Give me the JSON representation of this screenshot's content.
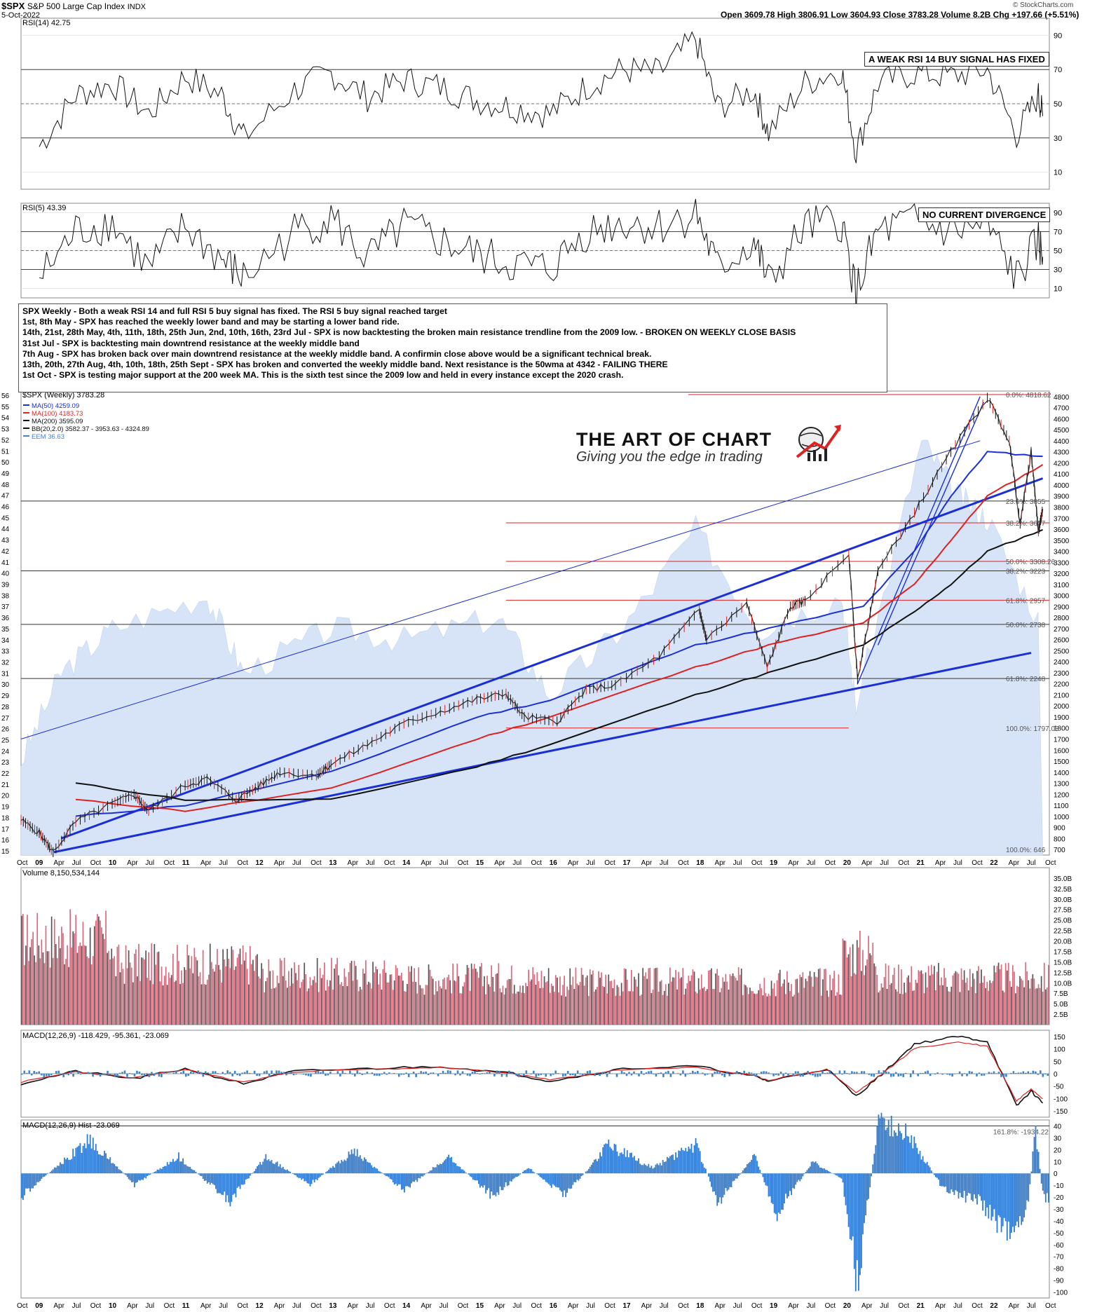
{
  "header": {
    "symbol": "$SPX",
    "name": "S&P 500 Large Cap Index",
    "exchange": "INDX",
    "date": "5-Oct-2022",
    "ohlc": "Open 3609.78  High 3806.91  Low 3604.93  Close 3783.28  Volume 8.2B  Chg +197.66 (+5.51%)",
    "copyright": "© StockCharts.com"
  },
  "callouts": {
    "rsi14": "A WEAK RSI 14 BUY SIGNAL HAS FIXED",
    "rsi5": "NO CURRENT DIVERGENCE"
  },
  "notes": [
    "SPX Weekly - Both a weak RSI 14 and full RSI 5 buy signal has fixed. The RSI 5 buy signal reached target",
    "1st, 8th May - SPX has reached the weekly lower band and may be starting a lower band ride.",
    "14th, 21st, 28th May, 4th, 11th, 18th, 25th Jun, 2nd, 10th, 16th, 23rd Jul - SPX is now backtesting the broken main resistance trendline from the 2009 low. - BROKEN ON WEEKLY CLOSE BASIS",
    "31st Jul - SPX is backtesting main downtrend resistance at the weekly middle band",
    "7th Aug - SPX has broken back over main downtrend resistance at the weekly middle band. A confirmin close above would be a significant technical break.",
    "13th, 20th, 27th Aug, 4th, 10th, 18th, 25th Sept - SPX has broken and converted the weekly middle band. Next resistance is the 50wma at 4342 - FAILING THERE",
    "",
    "1st Oct - SPX is testing major support at the 200 week MA. This is the sixth test since the 2009 low and held in every instance except the 2020 crash."
  ],
  "logo": {
    "title": "THE ART OF CHART",
    "subtitle": "Giving you the edge in trading"
  },
  "chart_data": [
    {
      "type": "line",
      "title": "RSI(14) 42.75",
      "ylim": [
        0,
        100
      ],
      "yticks": [
        "90",
        "70",
        "50",
        "30",
        "10"
      ],
      "series": [
        {
          "name": "RSI(14)",
          "x": [
            2009.0,
            2009.5,
            2010.0,
            2010.5,
            2011.0,
            2011.5,
            2011.8,
            2012.5,
            2013.0,
            2013.5,
            2014.0,
            2014.5,
            2015.0,
            2015.5,
            2016.0,
            2016.5,
            2017.0,
            2017.5,
            2018.0,
            2018.3,
            2018.8,
            2019.0,
            2019.5,
            2020.0,
            2020.2,
            2020.5,
            2021.0,
            2021.5,
            2022.0,
            2022.4,
            2022.7,
            2022.76
          ],
          "values": [
            25,
            55,
            62,
            44,
            66,
            55,
            30,
            58,
            68,
            54,
            64,
            60,
            52,
            48,
            44,
            60,
            70,
            68,
            88,
            48,
            58,
            33,
            62,
            70,
            22,
            62,
            68,
            66,
            70,
            32,
            55,
            42.75
          ]
        }
      ]
    },
    {
      "type": "line",
      "title": "RSI(5) 43.39",
      "ylim": [
        0,
        100
      ],
      "yticks": [
        "90",
        "70",
        "50",
        "30",
        "10"
      ],
      "series": [
        {
          "name": "RSI(5)",
          "x": [
            2009.0,
            2009.5,
            2010.0,
            2010.5,
            2011.0,
            2011.5,
            2011.8,
            2012.5,
            2013.0,
            2013.5,
            2014.0,
            2014.5,
            2015.0,
            2015.5,
            2016.0,
            2016.5,
            2017.0,
            2017.5,
            2018.0,
            2018.3,
            2018.8,
            2019.0,
            2019.5,
            2020.0,
            2020.2,
            2020.5,
            2021.0,
            2021.5,
            2022.0,
            2022.4,
            2022.7,
            2022.76
          ],
          "values": [
            20,
            70,
            80,
            30,
            75,
            40,
            20,
            70,
            85,
            40,
            75,
            60,
            45,
            35,
            30,
            70,
            80,
            75,
            90,
            30,
            60,
            15,
            75,
            80,
            5,
            70,
            80,
            70,
            75,
            20,
            60,
            43.39
          ]
        }
      ]
    },
    {
      "type": "line",
      "title": "$SPX (Weekly) 3783.28",
      "legend": [
        "MA(50) 4259.09",
        "MA(100) 4183.73",
        "MA(200) 3595.09",
        "BB(20,2.0) 3582.37 - 3953.63 - 4324.89",
        "EEM 36.63"
      ],
      "ylim": [
        650,
        4850
      ],
      "yticks": [
        "4800",
        "4700",
        "4600",
        "4500",
        "4400",
        "4300",
        "4200",
        "4100",
        "4000",
        "3900",
        "3800",
        "3700",
        "3600",
        "3500",
        "3400",
        "3300",
        "3200",
        "3100",
        "3000",
        "2900",
        "2800",
        "2700",
        "2600",
        "2500",
        "2400",
        "2300",
        "2200",
        "2100",
        "2000",
        "1900",
        "1800",
        "1700",
        "1600",
        "1500",
        "1400",
        "1300",
        "1200",
        "1100",
        "1000",
        "900",
        "800",
        "700"
      ],
      "eem_ticks": [
        "56",
        "55",
        "54",
        "53",
        "52",
        "51",
        "50",
        "49",
        "48",
        "47",
        "46",
        "45",
        "44",
        "43",
        "42",
        "41",
        "40",
        "39",
        "38",
        "37",
        "36",
        "35",
        "34",
        "33",
        "32",
        "31",
        "30",
        "29",
        "28",
        "27",
        "26",
        "25",
        "24",
        "23",
        "22",
        "21",
        "20",
        "19",
        "18",
        "17",
        "16",
        "15"
      ],
      "fib_labels": [
        "0.0%: 4818.62",
        "23.6%: 3855",
        "38.2%: 3657",
        "50.0%: 3308.26",
        "38.2%: 3223",
        "61.8%: 2957",
        "50.0%: 2738",
        "61.8%: 2248",
        "100.0%: 1797.08",
        "100.0%: 646"
      ],
      "xticks": [
        "Oct",
        "09",
        "Apr",
        "Jul",
        "Oct",
        "10",
        "Apr",
        "Jul",
        "Oct",
        "11",
        "Apr",
        "Jul",
        "Oct",
        "12",
        "Apr",
        "Jul",
        "Oct",
        "13",
        "Apr",
        "Jul",
        "Oct",
        "14",
        "Apr",
        "Jul",
        "Oct",
        "15",
        "Apr",
        "Jul",
        "Oct",
        "16",
        "Apr",
        "Jul",
        "Oct",
        "17",
        "Apr",
        "Jul",
        "Oct",
        "18",
        "Apr",
        "Jul",
        "Oct",
        "19",
        "Apr",
        "Jul",
        "Oct",
        "20",
        "Apr",
        "Jul",
        "Oct",
        "21",
        "Apr",
        "Jul",
        "Oct",
        "22",
        "Apr",
        "Jul",
        "Oct"
      ],
      "series": [
        {
          "name": "$SPX",
          "x": [
            2008.75,
            2009.0,
            2009.19,
            2009.5,
            2010.0,
            2010.3,
            2010.5,
            2011.0,
            2011.3,
            2011.7,
            2012.0,
            2012.3,
            2012.8,
            2013.0,
            2013.5,
            2014.0,
            2014.5,
            2015.0,
            2015.4,
            2015.65,
            2016.1,
            2016.5,
            2016.9,
            2017.5,
            2018.05,
            2018.15,
            2018.7,
            2018.98,
            2019.3,
            2019.5,
            2020.1,
            2020.22,
            2020.5,
            2021.0,
            2021.5,
            2022.0,
            2022.3,
            2022.45,
            2022.6,
            2022.7,
            2022.76
          ],
          "values": [
            968,
            850,
            676,
            950,
            1115,
            1200,
            1050,
            1280,
            1340,
            1150,
            1270,
            1400,
            1370,
            1470,
            1650,
            1840,
            1950,
            2060,
            2110,
            1900,
            1860,
            2150,
            2190,
            2450,
            2870,
            2600,
            2930,
            2350,
            2900,
            2950,
            3380,
            2240,
            3220,
            3750,
            4300,
            4790,
            4400,
            3650,
            4300,
            3580,
            3783.28
          ]
        },
        {
          "name": "MA(50)",
          "x": [
            2009.5,
            2011.0,
            2013.0,
            2015.0,
            2016.0,
            2018.0,
            2019.0,
            2020.3,
            2021.0,
            2021.5,
            2022.0,
            2022.76
          ],
          "values": [
            1000,
            1100,
            1400,
            1900,
            2050,
            2550,
            2700,
            2900,
            3400,
            3900,
            4300,
            4259.09
          ]
        },
        {
          "name": "MA(100)",
          "x": [
            2009.5,
            2011.0,
            2013.0,
            2015.0,
            2016.0,
            2018.0,
            2019.0,
            2020.3,
            2021.0,
            2021.5,
            2022.0,
            2022.76
          ],
          "values": [
            1150,
            1050,
            1250,
            1700,
            1900,
            2350,
            2550,
            2750,
            3100,
            3500,
            3900,
            4183.73
          ]
        },
        {
          "name": "MA(200)",
          "x": [
            2009.5,
            2011.0,
            2013.0,
            2015.0,
            2016.0,
            2018.0,
            2019.0,
            2020.3,
            2021.0,
            2021.5,
            2022.0,
            2022.76
          ],
          "values": [
            1300,
            1150,
            1150,
            1450,
            1650,
            2100,
            2300,
            2550,
            2850,
            3100,
            3400,
            3595.09
          ]
        }
      ]
    },
    {
      "type": "bar",
      "title": "Volume 8,150,534,144",
      "yticks": [
        "35.0B",
        "32.5B",
        "30.0B",
        "27.5B",
        "25.0B",
        "22.5B",
        "20.0B",
        "17.5B",
        "15.0B",
        "12.5B",
        "10.0B",
        "7.5B",
        "5.0B",
        "2.5B"
      ],
      "ylim": [
        0,
        37.5
      ]
    },
    {
      "type": "line",
      "title": "MACD(12,26,9) -118.429, -95.361, -23.069",
      "yticks": [
        "150",
        "100",
        "50",
        "0",
        "-50",
        "-100",
        "-150"
      ],
      "ylim": [
        -175,
        175
      ]
    },
    {
      "type": "bar",
      "title": "MACD(12,26,9) Hist -23.069",
      "yticks": [
        "40",
        "30",
        "20",
        "10",
        "0",
        "-10",
        "-20",
        "-30",
        "-40",
        "-50",
        "-60",
        "-70",
        "-80",
        "-90",
        "-100"
      ],
      "ylim": [
        -105,
        45
      ],
      "fib_label": "161.8%: -1934.22"
    }
  ]
}
